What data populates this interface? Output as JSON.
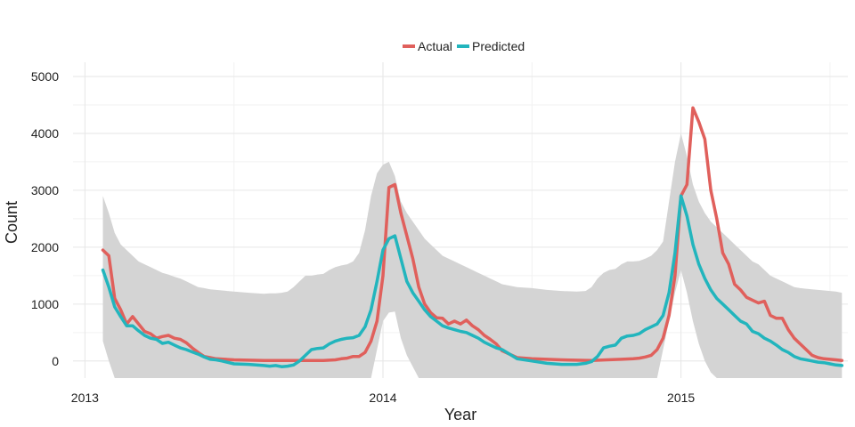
{
  "chart_data": {
    "type": "line",
    "title": "",
    "xlabel": "Year",
    "ylabel": "Count",
    "xlim": [
      2012.96,
      2015.56
    ],
    "ylim": [
      -300,
      5250
    ],
    "x_ticks": [
      2013,
      2014,
      2015
    ],
    "x_tick_labels": [
      "2013",
      "2014",
      "2015"
    ],
    "y_ticks": [
      0,
      1000,
      2000,
      3000,
      4000,
      5000
    ],
    "y_tick_labels": [
      "0",
      "1000",
      "2000",
      "3000",
      "4000",
      "5000"
    ],
    "grid": true,
    "legend_position": "top-center",
    "colors": {
      "actual": "#e0605c",
      "predicted": "#22b5bd",
      "band": "#d4d4d4"
    },
    "series": [
      {
        "name": "Actual",
        "key": "actual",
        "x": [
          2013.06,
          2013.08,
          2013.1,
          2013.12,
          2013.14,
          2013.16,
          2013.18,
          2013.2,
          2013.22,
          2013.24,
          2013.26,
          2013.28,
          2013.3,
          2013.32,
          2013.34,
          2013.36,
          2013.38,
          2013.4,
          2013.42,
          2013.44,
          2013.5,
          2013.6,
          2013.7,
          2013.8,
          2013.84,
          2013.86,
          2013.88,
          2013.9,
          2013.92,
          2013.94,
          2013.96,
          2013.98,
          2014.0,
          2014.02,
          2014.04,
          2014.06,
          2014.08,
          2014.1,
          2014.12,
          2014.14,
          2014.16,
          2014.18,
          2014.2,
          2014.22,
          2014.24,
          2014.26,
          2014.28,
          2014.3,
          2014.32,
          2014.34,
          2014.36,
          2014.38,
          2014.4,
          2014.45,
          2014.5,
          2014.6,
          2014.7,
          2014.75,
          2014.8,
          2014.84,
          2014.86,
          2014.88,
          2014.9,
          2014.92,
          2014.94,
          2014.96,
          2014.98,
          2015.0,
          2015.02,
          2015.04,
          2015.06,
          2015.08,
          2015.1,
          2015.12,
          2015.14,
          2015.16,
          2015.18,
          2015.2,
          2015.22,
          2015.24,
          2015.26,
          2015.28,
          2015.3,
          2015.32,
          2015.34,
          2015.36,
          2015.38,
          2015.4,
          2015.42,
          2015.44,
          2015.46,
          2015.48,
          2015.5,
          2015.52,
          2015.54
        ],
        "y": [
          1950,
          1850,
          1100,
          900,
          650,
          780,
          650,
          520,
          480,
          400,
          430,
          450,
          400,
          380,
          320,
          230,
          150,
          80,
          60,
          40,
          20,
          10,
          10,
          10,
          20,
          40,
          50,
          80,
          80,
          150,
          350,
          700,
          1500,
          3050,
          3100,
          2600,
          2200,
          1800,
          1300,
          1000,
          850,
          760,
          750,
          650,
          700,
          650,
          720,
          620,
          550,
          450,
          380,
          300,
          180,
          60,
          40,
          20,
          10,
          20,
          30,
          40,
          50,
          70,
          100,
          200,
          400,
          800,
          1500,
          2900,
          3100,
          4450,
          4200,
          3900,
          3000,
          2500,
          1900,
          1700,
          1350,
          1250,
          1120,
          1070,
          1020,
          1050,
          800,
          750,
          750,
          550,
          400,
          300,
          200,
          100,
          60,
          40,
          30,
          20,
          10
        ]
      },
      {
        "name": "Predicted",
        "key": "predicted",
        "x": [
          2013.06,
          2013.08,
          2013.1,
          2013.12,
          2013.14,
          2013.16,
          2013.18,
          2013.2,
          2013.22,
          2013.24,
          2013.26,
          2013.28,
          2013.3,
          2013.32,
          2013.34,
          2013.36,
          2013.38,
          2013.4,
          2013.42,
          2013.44,
          2013.46,
          2013.5,
          2013.55,
          2013.6,
          2013.62,
          2013.64,
          2013.66,
          2013.68,
          2013.7,
          2013.72,
          2013.74,
          2013.76,
          2013.78,
          2013.8,
          2013.82,
          2013.84,
          2013.86,
          2013.88,
          2013.9,
          2013.92,
          2013.94,
          2013.96,
          2013.98,
          2014.0,
          2014.02,
          2014.04,
          2014.06,
          2014.08,
          2014.1,
          2014.12,
          2014.14,
          2014.16,
          2014.18,
          2014.2,
          2014.22,
          2014.24,
          2014.26,
          2014.28,
          2014.3,
          2014.32,
          2014.34,
          2014.36,
          2014.38,
          2014.4,
          2014.45,
          2014.5,
          2014.55,
          2014.6,
          2014.65,
          2014.68,
          2014.7,
          2014.72,
          2014.74,
          2014.76,
          2014.78,
          2014.8,
          2014.82,
          2014.84,
          2014.86,
          2014.88,
          2014.9,
          2014.92,
          2014.94,
          2014.96,
          2014.98,
          2015.0,
          2015.02,
          2015.04,
          2015.06,
          2015.08,
          2015.1,
          2015.12,
          2015.14,
          2015.16,
          2015.18,
          2015.2,
          2015.22,
          2015.24,
          2015.26,
          2015.28,
          2015.3,
          2015.32,
          2015.34,
          2015.36,
          2015.38,
          2015.4,
          2015.42,
          2015.44,
          2015.46,
          2015.48,
          2015.5,
          2015.52,
          2015.54
        ],
        "y": [
          1600,
          1300,
          950,
          780,
          620,
          620,
          530,
          450,
          400,
          380,
          310,
          330,
          280,
          230,
          200,
          160,
          120,
          70,
          30,
          20,
          0,
          -50,
          -60,
          -80,
          -90,
          -80,
          -100,
          -90,
          -70,
          0,
          100,
          200,
          220,
          230,
          300,
          350,
          380,
          400,
          410,
          450,
          600,
          900,
          1400,
          1950,
          2150,
          2200,
          1800,
          1400,
          1200,
          1050,
          900,
          780,
          700,
          620,
          580,
          550,
          520,
          500,
          450,
          400,
          330,
          280,
          230,
          200,
          40,
          0,
          -40,
          -60,
          -60,
          -40,
          -10,
          80,
          230,
          260,
          280,
          400,
          440,
          450,
          480,
          550,
          600,
          650,
          800,
          1200,
          1900,
          2900,
          2550,
          2050,
          1700,
          1450,
          1250,
          1100,
          1000,
          900,
          800,
          700,
          650,
          520,
          480,
          400,
          350,
          280,
          200,
          150,
          80,
          40,
          20,
          0,
          -20,
          -30,
          -50,
          -70,
          -80
        ],
        "lower": [
          350,
          0,
          -300,
          -300,
          -300,
          -300,
          -300,
          -300,
          -300,
          -300,
          -300,
          -300,
          -300,
          -300,
          -300,
          -300,
          -300,
          -300,
          -300,
          -300,
          -300,
          -300,
          -300,
          -300,
          -300,
          -300,
          -300,
          -300,
          -300,
          -300,
          -300,
          -300,
          -300,
          -300,
          -300,
          -300,
          -300,
          -300,
          -300,
          -300,
          -300,
          -300,
          200,
          700,
          850,
          870,
          400,
          100,
          -100,
          -300,
          -300,
          -300,
          -300,
          -300,
          -300,
          -300,
          -300,
          -300,
          -300,
          -300,
          -300,
          -300,
          -300,
          -300,
          -300,
          -300,
          -300,
          -300,
          -300,
          -300,
          -300,
          -300,
          -300,
          -300,
          -300,
          -300,
          -300,
          -300,
          -300,
          -300,
          -300,
          -300,
          200,
          700,
          1200,
          1600,
          1200,
          700,
          300,
          0,
          -200,
          -300,
          -300,
          -300,
          -300,
          -300,
          -300,
          -300,
          -300,
          -300,
          -300,
          -300,
          -300,
          -300,
          -300,
          -300,
          -300,
          -300,
          -300,
          -300,
          -300,
          -300,
          -300
        ],
        "upper": [
          2900,
          2600,
          2250,
          2050,
          1950,
          1850,
          1750,
          1700,
          1650,
          1600,
          1550,
          1520,
          1480,
          1450,
          1400,
          1350,
          1300,
          1280,
          1260,
          1250,
          1240,
          1220,
          1200,
          1180,
          1190,
          1190,
          1200,
          1220,
          1300,
          1400,
          1500,
          1500,
          1520,
          1530,
          1600,
          1650,
          1680,
          1700,
          1750,
          1900,
          2300,
          2900,
          3300,
          3450,
          3500,
          3250,
          2800,
          2600,
          2450,
          2300,
          2150,
          2050,
          1950,
          1850,
          1800,
          1750,
          1700,
          1650,
          1600,
          1550,
          1500,
          1450,
          1400,
          1350,
          1300,
          1280,
          1250,
          1230,
          1220,
          1230,
          1300,
          1450,
          1550,
          1600,
          1620,
          1700,
          1750,
          1750,
          1760,
          1800,
          1850,
          1950,
          2100,
          2800,
          3500,
          4000,
          3600,
          3100,
          2800,
          2600,
          2450,
          2350,
          2250,
          2150,
          2050,
          1950,
          1850,
          1750,
          1700,
          1600,
          1500,
          1450,
          1400,
          1350,
          1300,
          1280,
          1270,
          1260,
          1250,
          1240,
          1230,
          1220,
          1200
        ]
      }
    ]
  }
}
